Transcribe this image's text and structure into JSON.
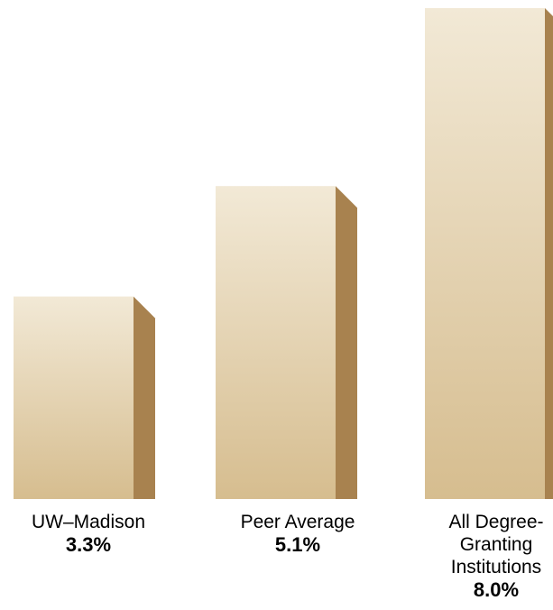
{
  "chart_data": {
    "type": "bar",
    "title": "",
    "xlabel": "",
    "ylabel": "",
    "categories": [
      "UW–Madison",
      "Peer Average",
      "All Degree-Granting Institutions"
    ],
    "category_lines": [
      [
        "UW–Madison"
      ],
      [
        "Peer Average"
      ],
      [
        "All Degree-",
        "Granting",
        "Institutions"
      ]
    ],
    "values": [
      3.3,
      5.1,
      8.0
    ],
    "value_labels": [
      "3.3%",
      "5.1%",
      "8.0%"
    ],
    "unit": "%",
    "ylim": [
      0,
      8.0
    ],
    "colors": {
      "front_top": "#f2e9d6",
      "front_bottom": "#d6bd8f",
      "side": "#a8824f",
      "top_bevel": "#efe4cb"
    }
  }
}
